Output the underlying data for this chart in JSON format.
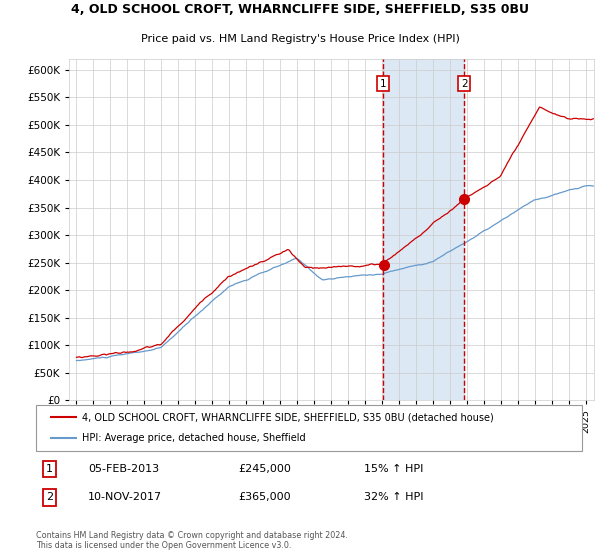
{
  "title": "4, OLD SCHOOL CROFT, WHARNCLIFFE SIDE, SHEFFIELD, S35 0BU",
  "subtitle": "Price paid vs. HM Land Registry's House Price Index (HPI)",
  "red_line_label": "4, OLD SCHOOL CROFT, WHARNCLIFFE SIDE, SHEFFIELD, S35 0BU (detached house)",
  "blue_line_label": "HPI: Average price, detached house, Sheffield",
  "transaction1_date": "05-FEB-2013",
  "transaction1_price": 245000,
  "transaction1_hpi": "15% ↑ HPI",
  "transaction1_year": 2013.09,
  "transaction2_date": "10-NOV-2017",
  "transaction2_price": 365000,
  "transaction2_hpi": "32% ↑ HPI",
  "transaction2_year": 2017.86,
  "ylim": [
    0,
    620000
  ],
  "yticks": [
    0,
    50000,
    100000,
    150000,
    200000,
    250000,
    300000,
    350000,
    400000,
    450000,
    500000,
    550000,
    600000
  ],
  "xmin": 1994.6,
  "xmax": 2025.5,
  "highlight_color": "#dce9f5",
  "red_color": "#cc0000",
  "blue_color": "#6699cc",
  "grid_color": "#cccccc",
  "footer_text": "Contains HM Land Registry data © Crown copyright and database right 2024.\nThis data is licensed under the Open Government Licence v3.0."
}
